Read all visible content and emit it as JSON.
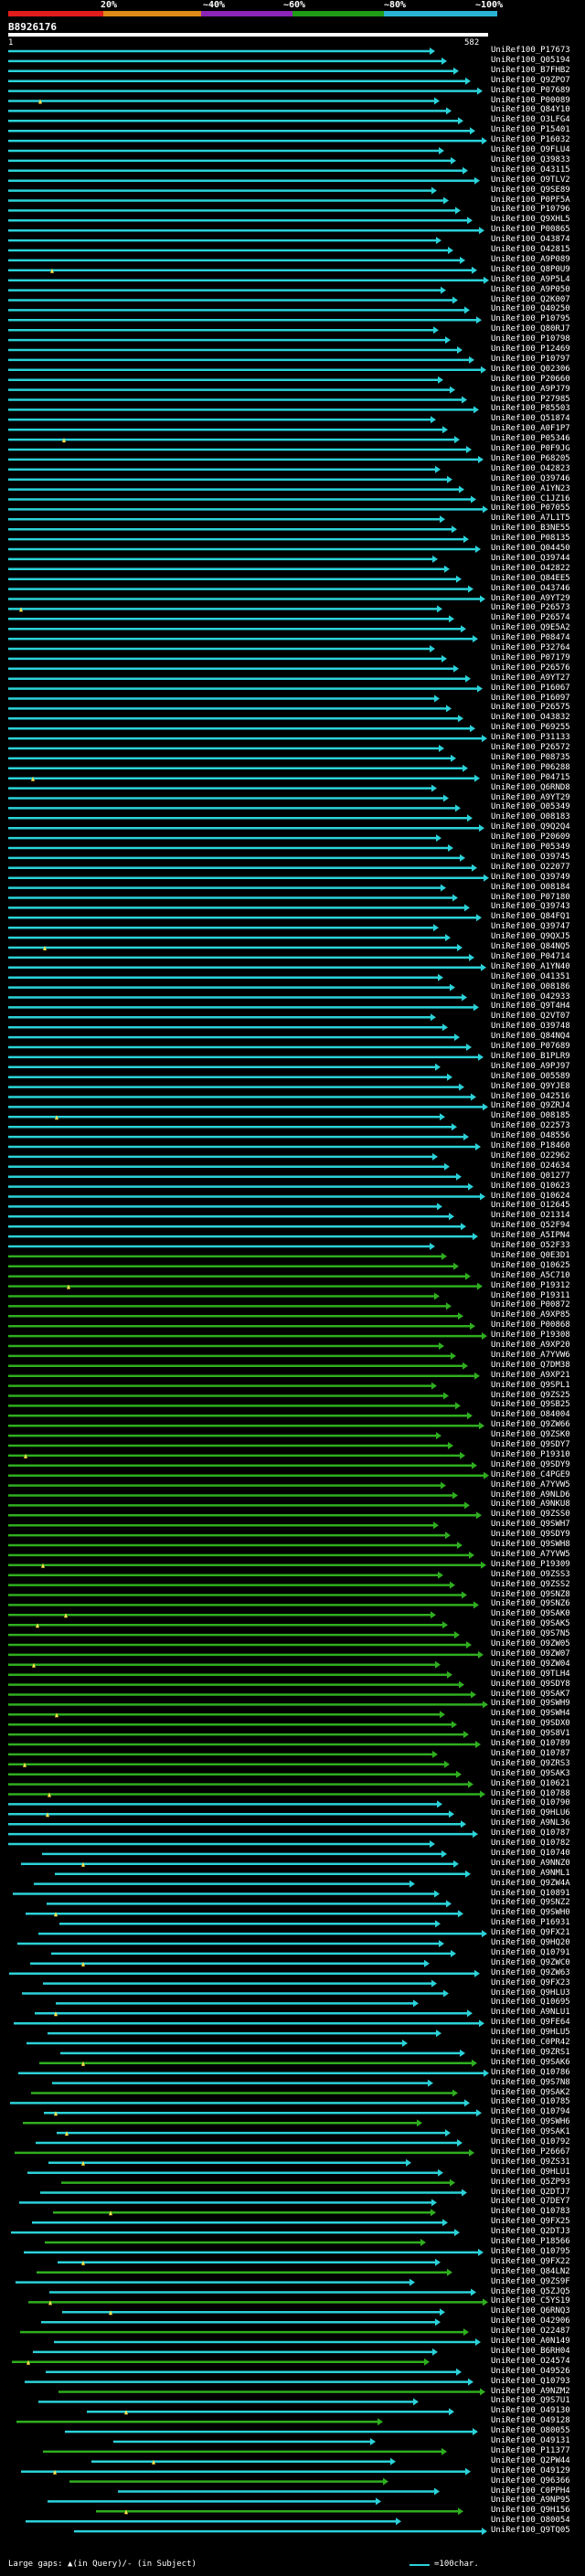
{
  "query": {
    "id": "B8926176",
    "start": "1",
    "end": "582"
  },
  "scale": {
    "labels": [
      "20%",
      "~40%",
      "~60%",
      "~80%",
      "~100%"
    ],
    "colors": [
      "#e01c1c",
      "#e08a18",
      "#8b25b8",
      "#1f9d16",
      "#2ab4d4"
    ]
  },
  "hits": [
    "UniRef100_P17673",
    "UniRef100_Q05194",
    "UniRef100_B7FHB2",
    "UniRef100_Q9ZPO7",
    "UniRef100_P07689",
    "UniRef100_P00089",
    "UniRef100_Q84Y10",
    "UniRef100_O3LFG4",
    "UniRef100_P15401",
    "UniRef100_P16032",
    "UniRef100_O9FLU4",
    "UniRef100_Q39833",
    "UniRef100_O43115",
    "UniRef100_O9TLV2",
    "UniRef100_Q9SE89",
    "UniRef100_P0PF5A",
    "UniRef100_P10796",
    "UniRef100_Q9XHL5",
    "UniRef100_P00865",
    "UniRef100_O43874",
    "UniRef100_O42815",
    "UniRef100_A9P089",
    "UniRef100_Q8P0U9",
    "UniRef100_A9P5L4",
    "UniRef100_A9P050",
    "UniRef100_Q2K007",
    "UniRef100_Q40250",
    "UniRef100_P10795",
    "UniRef100_Q80RJ7",
    "UniRef100_P10798",
    "UniRef100_P12469",
    "UniRef100_P10797",
    "UniRef100_Q02306",
    "UniRef100_P20660",
    "UniRef100_A9PJ79",
    "UniRef100_P27985",
    "UniRef100_P85503",
    "UniRef100_Q51874",
    "UniRef100_A0F1P7",
    "UniRef100_P05346",
    "UniRef100_P0F9JG",
    "UniRef100_P68205",
    "UniRef100_O42823",
    "UniRef100_Q39746",
    "UniRef100_A1YN23",
    "UniRef100_C1JZ16",
    "UniRef100_P07055",
    "UniRef100_A7L1T5",
    "UniRef100_B3NE55",
    "UniRef100_P08135",
    "UniRef100_Q04450",
    "UniRef100_Q39744",
    "UniRef100_O42822",
    "UniRef100_Q84EE5",
    "UniRef100_O43746",
    "UniRef100_A9YT29",
    "UniRef100_P26573",
    "UniRef100_P26574",
    "UniRef100_Q9E5A2",
    "UniRef100_P08474",
    "UniRef100_P32764",
    "UniRef100_P07179",
    "UniRef100_P26576",
    "UniRef100_A9YT27",
    "UniRef100_P16067",
    "UniRef100_P16097",
    "UniRef100_P26575",
    "UniRef100_O43832",
    "UniRef100_P69255",
    "UniRef100_P31133",
    "UniRef100_P26572",
    "UniRef100_P08735",
    "UniRef100_P06288",
    "UniRef100_P04715",
    "UniRef100_Q6RND8",
    "UniRef100_A9YT29",
    "UniRef100_O05349",
    "UniRef100_O08183",
    "UniRef100_Q9Q2Q4",
    "UniRef100_P20609",
    "UniRef100_P05349",
    "UniRef100_O39745",
    "UniRef100_O22077",
    "UniRef100_Q39749",
    "UniRef100_O08184",
    "UniRef100_P07180",
    "UniRef100_Q39743",
    "UniRef100_Q84FQ1",
    "UniRef100_Q39747",
    "UniRef100_Q9QXJ5",
    "UniRef100_Q84NQ5",
    "UniRef100_P04714",
    "UniRef100_A1YN40",
    "UniRef100_O41351",
    "UniRef100_O08186",
    "UniRef100_O42933",
    "UniRef100_Q9T4H4",
    "UniRef100_Q2VT07",
    "UniRef100_O39748",
    "UniRef100_Q84NQ4",
    "UniRef100_P07689",
    "UniRef100_B1PLR9",
    "UniRef100_A9PJ97",
    "UniRef100_O05589",
    "UniRef100_Q9YJE8",
    "UniRef100_O42516",
    "UniRef100_Q9ZRJ4",
    "UniRef100_O08185",
    "UniRef100_O22573",
    "UniRef100_O48556",
    "UniRef100_P18460",
    "UniRef100_O22962",
    "UniRef100_O24634",
    "UniRef100_Q01277",
    "UniRef100_Q10623",
    "UniRef100_Q10624",
    "UniRef100_O12645",
    "UniRef100_O21314",
    "UniRef100_Q52F94",
    "UniRef100_A5IPN4",
    "UniRef100_O52F33",
    "UniRef100_Q0E3D1",
    "UniRef100_Q10625",
    "UniRef100_A5C710",
    "UniRef100_P19312",
    "UniRef100_P19311",
    "UniRef100_P00872",
    "UniRef100_A9XP85",
    "UniRef100_P00868",
    "UniRef100_P19308",
    "UniRef100_A9XP20",
    "UniRef100_A7YVW6",
    "UniRef100_Q7DM38",
    "UniRef100_A9XP21",
    "UniRef100_Q9SPL1",
    "UniRef100_Q9ZS25",
    "UniRef100_Q9SB25",
    "UniRef100_O84004",
    "UniRef100_Q9ZW66",
    "UniRef100_Q9ZSK0",
    "UniRef100_Q9SDY7",
    "UniRef100_P19310",
    "UniRef100_Q9SDY9",
    "UniRef100_C4PGE9",
    "UniRef100_A7YVW5",
    "UniRef100_A9NLD6",
    "UniRef100_A9NKU8",
    "UniRef100_Q9ZSS0",
    "UniRef100_Q9SWH7",
    "UniRef100_Q9SDY9",
    "UniRef100_Q9SWH8",
    "UniRef100_A7YVW5",
    "UniRef100_P19309",
    "UniRef100_O9ZSS3",
    "UniRef100_Q9ZSS2",
    "UniRef100_Q9SNZ8",
    "UniRef100_Q9SNZ6",
    "UniRef100_Q9SAK0",
    "UniRef100_Q9SAK5",
    "UniRef100_Q9S7N5",
    "UniRef100_O9ZW05",
    "UniRef100_O9ZW07",
    "UniRef100_Q9ZW04",
    "UniRef100_Q9TLH4",
    "UniRef100_Q9SDY8",
    "UniRef100_Q9SAK7",
    "UniRef100_Q9SWH9",
    "UniRef100_Q9SWH4",
    "UniRef100_Q9SDX0",
    "UniRef100_Q9S8V1",
    "UniRef100_Q10789",
    "UniRef100_Q10787",
    "UniRef100_Q9ZRS3",
    "UniRef100_Q9SAK3",
    "UniRef100_Q10621",
    "UniRef100_Q10788",
    "UniRef100_Q10790",
    "UniRef100_Q9HLU6",
    "UniRef100_A9NL36",
    "UniRef100_Q10787",
    "UniRef100_Q10782",
    "UniRef100_Q10740",
    "UniRef100_A9NNZ0",
    "UniRef100_A9NML1",
    "UniRef100_Q9ZW4A",
    "UniRef100_Q10891",
    "UniRef100_Q9SNZ2",
    "UniRef100_Q9SWH0",
    "UniRef100_P16931",
    "UniRef100_Q9FX21",
    "UniRef100_Q9HQ20",
    "UniRef100_Q10791",
    "UniRef100_Q9ZWC0",
    "UniRef100_Q9ZW63",
    "UniRef100_Q9FX23",
    "UniRef100_Q9HLU3",
    "UniRef100_Q10695",
    "UniRef100_A9NLU1",
    "UniRef100_Q9FE64",
    "UniRef100_Q9HLU5",
    "UniRef100_C0PR42",
    "UniRef100_Q9ZRS1",
    "UniRef100_Q9SAK6",
    "UniRef100_Q10786",
    "UniRef100_Q9S7N8",
    "UniRef100_Q9SAK2",
    "UniRef100_Q10785",
    "UniRef100_Q10794",
    "UniRef100_Q9SWH6",
    "UniRef100_Q9SAK1",
    "UniRef100_Q10792",
    "UniRef100_P26667",
    "UniRef100_Q9ZS31",
    "UniRef100_Q9HLU1",
    "UniRef100_Q5ZP93",
    "UniRef100_Q2DTJ7",
    "UniRef100_Q7DEY7",
    "UniRef100_Q10783",
    "UniRef100_Q9FX25",
    "UniRef100_Q2DTJ3",
    "UniRef100_P18566",
    "UniRef100_Q10795",
    "UniRef100_Q9FX22",
    "UniRef100_Q84LN2",
    "UniRef100_Q9ZS9F",
    "UniRef100_Q5ZJQ5",
    "UniRef100_C5YS19",
    "UniRef100_Q6RNQ3",
    "UniRef100_O42906",
    "UniRef100_O22487",
    "UniRef100_A0N149",
    "UniRef100_B6RH04",
    "UniRef100_O24574",
    "UniRef100_O49526",
    "UniRef100_Q10793",
    "UniRef100_A9NZM2",
    "UniRef100_Q9S7U1",
    "UniRef100_O49130",
    "UniRef100_O49128",
    "UniRef100_O80055",
    "UniRef100_O49131",
    "UniRef100_P11377",
    "UniRef100_Q2PW44",
    "UniRef100_O49129",
    "UniRef100_Q96366",
    "UniRef100_C0PPH4",
    "UniRef100_A9NP95",
    "UniRef100_Q9H156",
    "UniRef100_O80054",
    "UniRef100_Q9TQ05"
  ],
  "legend": {
    "left": "Large gaps: ▲(in Query)/- (in Subject)",
    "right": "=100char."
  }
}
